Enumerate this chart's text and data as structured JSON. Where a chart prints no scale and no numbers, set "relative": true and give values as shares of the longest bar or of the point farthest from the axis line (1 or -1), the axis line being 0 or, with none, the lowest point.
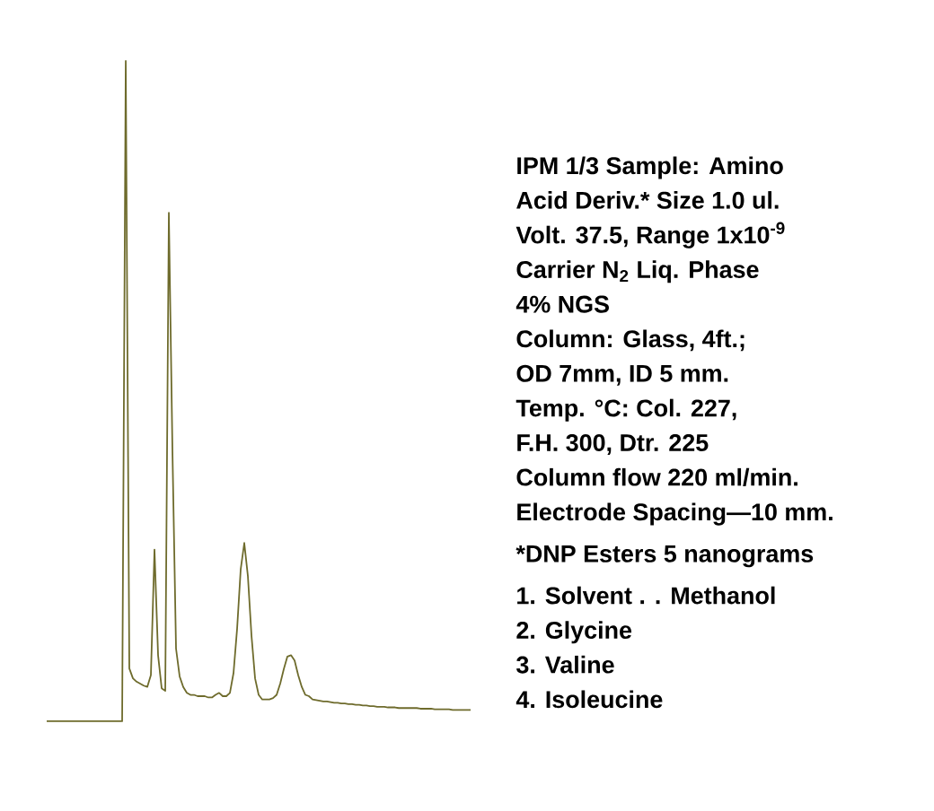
{
  "chart_data": {
    "type": "line",
    "relative": true,
    "color": "#6e6b2c",
    "categories": [
      null,
      null,
      null,
      null,
      null,
      null,
      null,
      null,
      null,
      null,
      null,
      null,
      null,
      null,
      null,
      null,
      null,
      null,
      null,
      null,
      null,
      null,
      null,
      null,
      null,
      null,
      null,
      null,
      null,
      null,
      null,
      null,
      null,
      null,
      null,
      null,
      null,
      null,
      null,
      null,
      null,
      null,
      null,
      null,
      null,
      null,
      null,
      null,
      null,
      null,
      null,
      null,
      null,
      null,
      null,
      null,
      null,
      null,
      null,
      null,
      null,
      null,
      null,
      null,
      null,
      null,
      null,
      null,
      null,
      null,
      null,
      null,
      null,
      null,
      null,
      null,
      null,
      null,
      null,
      null,
      null,
      null,
      null,
      null,
      null,
      null,
      null,
      null,
      null,
      null,
      null,
      null,
      null,
      null,
      null,
      null,
      null,
      null,
      null,
      null,
      null,
      null,
      null,
      null,
      null,
      null,
      null,
      null,
      null,
      null,
      null,
      null,
      null,
      null,
      null,
      null,
      null,
      null,
      null
    ],
    "values": [
      0,
      0,
      0,
      0,
      0,
      0,
      0,
      0,
      0,
      0,
      0,
      0,
      0,
      0,
      0,
      0,
      0,
      0,
      0,
      0,
      0,
      0,
      1.0,
      0.08,
      0.065,
      0.06,
      0.057,
      0.054,
      0.052,
      0.07,
      0.26,
      0.1,
      0.05,
      0.046,
      0.77,
      0.41,
      0.11,
      0.068,
      0.052,
      0.043,
      0.04,
      0.04,
      0.038,
      0.038,
      0.038,
      0.036,
      0.036,
      0.04,
      0.043,
      0.038,
      0.038,
      0.043,
      0.073,
      0.14,
      0.23,
      0.27,
      0.22,
      0.13,
      0.065,
      0.04,
      0.033,
      0.033,
      0.033,
      0.035,
      0.04,
      0.057,
      0.079,
      0.098,
      0.1,
      0.092,
      0.07,
      0.052,
      0.04,
      0.038,
      0.033,
      0.032,
      0.031,
      0.03,
      0.03,
      0.029,
      0.028,
      0.028,
      0.027,
      0.027,
      0.026,
      0.026,
      0.025,
      0.025,
      0.024,
      0.024,
      0.023,
      0.023,
      0.022,
      0.022,
      0.022,
      0.021,
      0.021,
      0.021,
      0.02,
      0.02,
      0.02,
      0.02,
      0.02,
      0.02,
      0.019,
      0.019,
      0.019,
      0.019,
      0.018,
      0.018,
      0.018,
      0.018,
      0.018,
      0.017,
      0.017,
      0.017,
      0.017,
      0.017,
      0.017
    ],
    "annotations": [
      "IPM 1/3  Sample: Amino",
      "Acid Deriv.* Size 1.0 ul.",
      "Volt. 37.5, Range 1x10$^{-9}$",
      "Carrier N$_{2}$  Liq. Phase",
      "4% NGS",
      "Column: Glass, 4ft.;",
      "OD 7mm, ID 5 mm.",
      "Temp. °C: Col. 227,",
      "F.H. 300, Dtr. 225",
      "Column flow 220 ml/min.",
      "Electrode Spacing—10 mm.",
      "*DNP Esters 5 nanograms",
      "1.  Solvent . . Methanol",
      "2.  Glycine",
      "3.  Valine",
      "4.  Isoleucine"
    ]
  }
}
